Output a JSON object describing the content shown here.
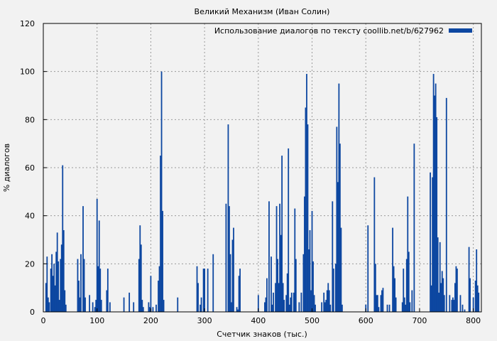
{
  "chart_data": {
    "type": "bar",
    "title": "Великий Механизм (Иван Солин)",
    "xlabel": "Счетчик знаков (тыс.)",
    "ylabel": "% диалогов",
    "xlim": [
      0,
      815
    ],
    "ylim": [
      0,
      120
    ],
    "x_ticks": [
      0,
      100,
      200,
      300,
      400,
      500,
      600,
      700,
      800
    ],
    "y_ticks": [
      0,
      20,
      40,
      60,
      80,
      100,
      120
    ],
    "grid": true,
    "legend_position": "top-right",
    "series": [
      {
        "name": "Использование диалогов по тексту coollib.net/b/627962",
        "color": "#0d47a1",
        "x": [
          5,
          7,
          9,
          11,
          14,
          16,
          18,
          20,
          22,
          24,
          26,
          28,
          30,
          32,
          34,
          36,
          38,
          40,
          42,
          64,
          66,
          68,
          70,
          74,
          76,
          78,
          86,
          92,
          96,
          98,
          100,
          102,
          104,
          106,
          108,
          118,
          120,
          124,
          150,
          160,
          168,
          178,
          180,
          182,
          184,
          186,
          196,
          198,
          200,
          204,
          210,
          214,
          216,
          218,
          220,
          222,
          224,
          250,
          286,
          288,
          292,
          294,
          298,
          300,
          306,
          316,
          340,
          344,
          346,
          348,
          350,
          352,
          354,
          360,
          362,
          364,
          366,
          400,
          412,
          414,
          416,
          420,
          424,
          426,
          428,
          432,
          434,
          436,
          438,
          440,
          442,
          444,
          446,
          448,
          452,
          454,
          456,
          458,
          460,
          462,
          466,
          468,
          470,
          476,
          480,
          484,
          486,
          488,
          490,
          492,
          494,
          496,
          498,
          500,
          502,
          504,
          506,
          518,
          522,
          524,
          526,
          528,
          530,
          532,
          534,
          538,
          540,
          544,
          546,
          548,
          550,
          552,
          554,
          556,
          600,
          604,
          616,
          618,
          620,
          622,
          624,
          628,
          630,
          632,
          640,
          644,
          650,
          652,
          654,
          656,
          668,
          670,
          672,
          674,
          676,
          678,
          680,
          682,
          686,
          690,
          720,
          722,
          724,
          726,
          728,
          730,
          732,
          734,
          736,
          738,
          740,
          742,
          744,
          746,
          750,
          756,
          760,
          762,
          764,
          766,
          768,
          770,
          776,
          780,
          784,
          792,
          794,
          800,
          804,
          806,
          808,
          810
        ],
        "values": [
          12,
          23,
          6,
          4,
          18,
          24,
          15,
          20,
          11,
          25,
          33,
          21,
          5,
          22,
          28,
          61,
          34,
          9,
          3,
          22,
          13,
          6,
          24,
          44,
          22,
          6,
          7,
          4,
          2,
          5,
          47,
          19,
          38,
          18,
          5,
          9,
          18,
          4,
          6,
          8,
          4,
          22,
          36,
          28,
          5,
          2,
          4,
          2,
          15,
          2,
          3,
          13,
          19,
          65,
          100,
          42,
          5,
          6,
          19,
          12,
          3,
          6,
          18,
          18,
          18,
          24,
          45,
          78,
          44,
          24,
          4,
          30,
          35,
          2,
          1,
          15,
          18,
          7,
          4,
          6,
          14,
          46,
          23,
          3,
          8,
          12,
          44,
          22,
          12,
          45,
          32,
          65,
          12,
          5,
          7,
          16,
          68,
          3,
          6,
          8,
          8,
          43,
          22,
          4,
          8,
          24,
          48,
          85,
          99,
          78,
          26,
          34,
          9,
          42,
          21,
          7,
          3,
          4,
          8,
          4,
          5,
          9,
          12,
          9,
          3,
          46,
          18,
          20,
          77,
          54,
          95,
          70,
          35,
          3,
          3,
          36,
          56,
          20,
          7,
          7,
          2,
          7,
          9,
          10,
          3,
          3,
          35,
          19,
          14,
          6,
          4,
          18,
          6,
          3,
          22,
          48,
          25,
          4,
          9,
          70,
          58,
          11,
          56,
          99,
          90,
          95,
          81,
          31,
          8,
          29,
          12,
          17,
          14,
          7,
          89,
          7,
          5,
          6,
          5,
          12,
          19,
          18,
          7,
          3,
          1,
          27,
          14,
          6,
          13,
          26,
          11,
          8
        ]
      }
    ]
  }
}
